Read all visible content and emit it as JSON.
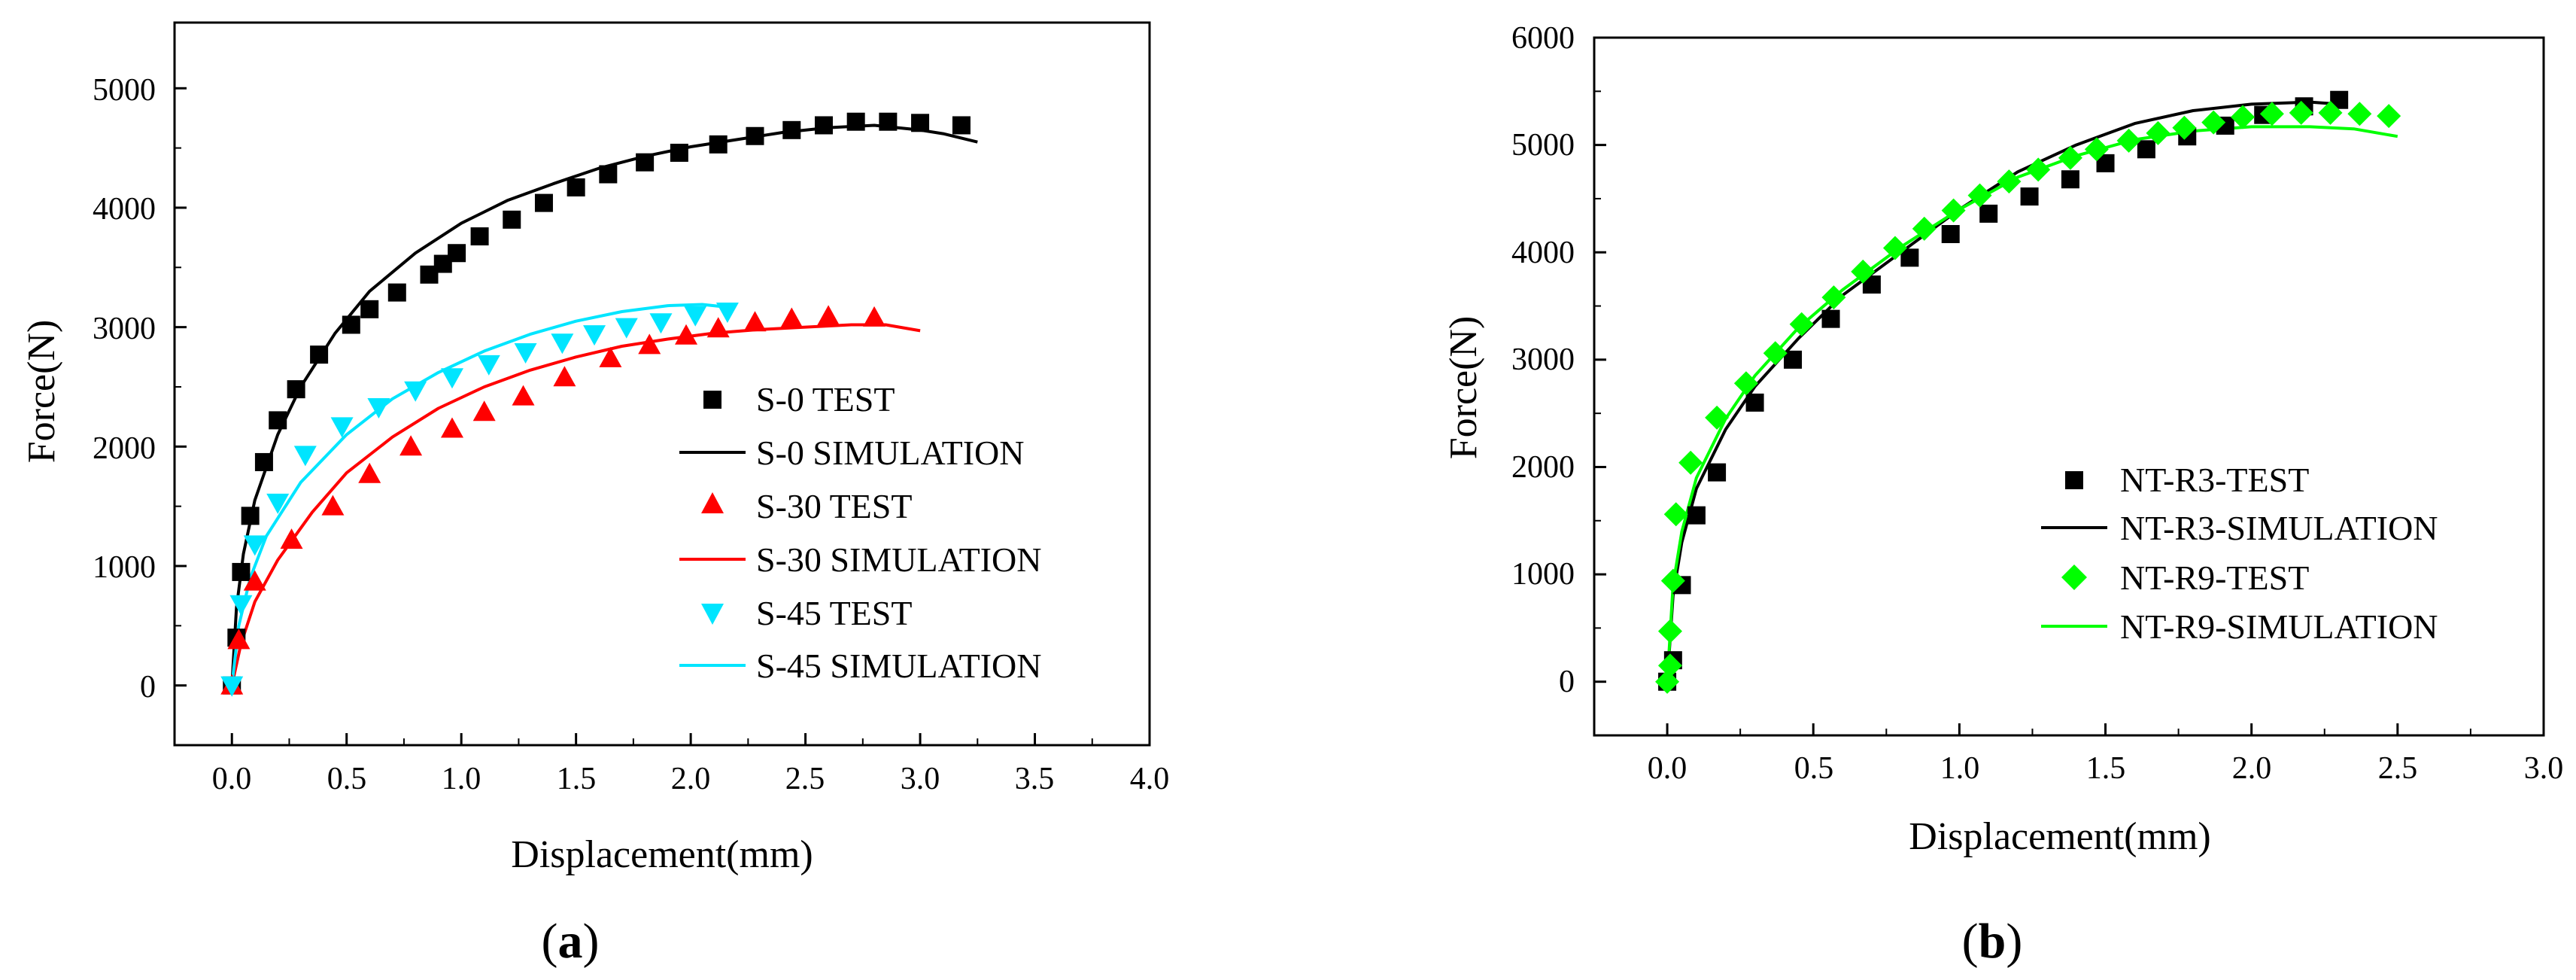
{
  "chart_data": [
    {
      "type": "scatter",
      "panel_label": "a",
      "xlabel": "Displacement(mm)",
      "ylabel": "Force(N)",
      "xlim": [
        -0.25,
        4.0
      ],
      "ylim": [
        -500,
        5550
      ],
      "xticks": [
        0.0,
        0.5,
        1.0,
        1.5,
        2.0,
        2.5,
        3.0,
        3.5,
        4.0
      ],
      "xtick_labels": [
        "0.0",
        "0.5",
        "1.0",
        "1.5",
        "2.0",
        "2.5",
        "3.0",
        "3.5",
        "4.0"
      ],
      "yticks": [
        0,
        1000,
        2000,
        3000,
        4000,
        5000
      ],
      "ytick_labels": [
        "0",
        "1000",
        "2000",
        "3000",
        "4000",
        "5000"
      ],
      "legend_position": "right",
      "series": [
        {
          "name": "S-0 TEST",
          "kind": "marker",
          "marker": "square",
          "color": "#000000",
          "points": [
            [
              0,
              0
            ],
            [
              0.02,
              400
            ],
            [
              0.04,
              950
            ],
            [
              0.08,
              1420
            ],
            [
              0.14,
              1870
            ],
            [
              0.2,
              2220
            ],
            [
              0.28,
              2480
            ],
            [
              0.38,
              2770
            ],
            [
              0.52,
              3020
            ],
            [
              0.6,
              3150
            ],
            [
              0.72,
              3290
            ],
            [
              0.86,
              3440
            ],
            [
              0.92,
              3530
            ],
            [
              0.98,
              3620
            ],
            [
              1.08,
              3760
            ],
            [
              1.22,
              3900
            ],
            [
              1.36,
              4040
            ],
            [
              1.5,
              4170
            ],
            [
              1.64,
              4280
            ],
            [
              1.8,
              4380
            ],
            [
              1.95,
              4460
            ],
            [
              2.12,
              4530
            ],
            [
              2.28,
              4600
            ],
            [
              2.44,
              4650
            ],
            [
              2.58,
              4690
            ],
            [
              2.72,
              4720
            ],
            [
              2.86,
              4720
            ],
            [
              3.0,
              4710
            ],
            [
              3.18,
              4690
            ]
          ]
        },
        {
          "name": "S-0 SIMULATION",
          "kind": "line",
          "color": "#000000",
          "points": [
            [
              0,
              0
            ],
            [
              0.02,
              650
            ],
            [
              0.05,
              1100
            ],
            [
              0.1,
              1550
            ],
            [
              0.2,
              2100
            ],
            [
              0.3,
              2500
            ],
            [
              0.45,
              2950
            ],
            [
              0.6,
              3300
            ],
            [
              0.8,
              3620
            ],
            [
              1.0,
              3870
            ],
            [
              1.2,
              4060
            ],
            [
              1.4,
              4200
            ],
            [
              1.6,
              4330
            ],
            [
              1.8,
              4430
            ],
            [
              2.0,
              4510
            ],
            [
              2.2,
              4570
            ],
            [
              2.4,
              4630
            ],
            [
              2.6,
              4670
            ],
            [
              2.8,
              4690
            ],
            [
              3.0,
              4650
            ],
            [
              3.1,
              4620
            ],
            [
              3.25,
              4550
            ]
          ]
        },
        {
          "name": "S-30 TEST",
          "kind": "marker",
          "marker": "triangle-up",
          "color": "#ff0000",
          "points": [
            [
              0,
              0
            ],
            [
              0.03,
              380
            ],
            [
              0.1,
              870
            ],
            [
              0.26,
              1220
            ],
            [
              0.44,
              1500
            ],
            [
              0.6,
              1770
            ],
            [
              0.78,
              2000
            ],
            [
              0.96,
              2150
            ],
            [
              1.1,
              2290
            ],
            [
              1.27,
              2420
            ],
            [
              1.45,
              2580
            ],
            [
              1.65,
              2740
            ],
            [
              1.82,
              2850
            ],
            [
              1.98,
              2930
            ],
            [
              2.12,
              2990
            ],
            [
              2.28,
              3040
            ],
            [
              2.44,
              3070
            ],
            [
              2.6,
              3090
            ],
            [
              2.8,
              3080
            ]
          ]
        },
        {
          "name": "S-30 SIMULATION",
          "kind": "line",
          "color": "#ff0000",
          "points": [
            [
              0,
              0
            ],
            [
              0.04,
              350
            ],
            [
              0.1,
              700
            ],
            [
              0.2,
              1050
            ],
            [
              0.35,
              1450
            ],
            [
              0.5,
              1780
            ],
            [
              0.7,
              2080
            ],
            [
              0.9,
              2320
            ],
            [
              1.1,
              2500
            ],
            [
              1.3,
              2640
            ],
            [
              1.5,
              2750
            ],
            [
              1.7,
              2840
            ],
            [
              1.9,
              2900
            ],
            [
              2.1,
              2950
            ],
            [
              2.3,
              2980
            ],
            [
              2.5,
              3000
            ],
            [
              2.7,
              3020
            ],
            [
              2.85,
              3020
            ],
            [
              3.0,
              2970
            ]
          ]
        },
        {
          "name": "S-45 TEST",
          "kind": "marker",
          "marker": "triangle-down",
          "color": "#00e5ff",
          "points": [
            [
              0,
              0
            ],
            [
              0.04,
              680
            ],
            [
              0.1,
              1180
            ],
            [
              0.2,
              1530
            ],
            [
              0.32,
              1930
            ],
            [
              0.48,
              2170
            ],
            [
              0.64,
              2330
            ],
            [
              0.8,
              2470
            ],
            [
              0.96,
              2580
            ],
            [
              1.12,
              2690
            ],
            [
              1.28,
              2790
            ],
            [
              1.44,
              2870
            ],
            [
              1.58,
              2940
            ],
            [
              1.72,
              3000
            ],
            [
              1.87,
              3040
            ],
            [
              2.02,
              3100
            ],
            [
              2.16,
              3130
            ]
          ]
        },
        {
          "name": "S-45 SIMULATION",
          "kind": "line",
          "color": "#00e5ff",
          "points": [
            [
              0,
              0
            ],
            [
              0.03,
              500
            ],
            [
              0.08,
              900
            ],
            [
              0.15,
              1250
            ],
            [
              0.3,
              1700
            ],
            [
              0.5,
              2100
            ],
            [
              0.7,
              2400
            ],
            [
              0.9,
              2620
            ],
            [
              1.1,
              2800
            ],
            [
              1.3,
              2940
            ],
            [
              1.5,
              3050
            ],
            [
              1.7,
              3130
            ],
            [
              1.9,
              3180
            ],
            [
              2.05,
              3190
            ],
            [
              2.15,
              3170
            ]
          ]
        }
      ]
    },
    {
      "type": "scatter",
      "panel_label": "b",
      "xlabel": "Displacement(mm)",
      "ylabel": "Force(N)",
      "xlim": [
        -0.25,
        3.0
      ],
      "ylim": [
        -500,
        6000
      ],
      "xticks": [
        0.0,
        0.5,
        1.0,
        1.5,
        2.0,
        2.5,
        3.0
      ],
      "xtick_labels": [
        "0.0",
        "0.5",
        "1.0",
        "1.5",
        "2.0",
        "2.5",
        "3.0"
      ],
      "yticks": [
        0,
        1000,
        2000,
        3000,
        4000,
        5000,
        6000
      ],
      "ytick_labels": [
        "0",
        "1000",
        "2000",
        "3000",
        "4000",
        "5000",
        "6000"
      ],
      "legend_position": "bottom-right",
      "series": [
        {
          "name": "NT-R3-TEST",
          "kind": "marker",
          "marker": "square",
          "color": "#000000",
          "points": [
            [
              0,
              0
            ],
            [
              0.02,
              200
            ],
            [
              0.05,
              900
            ],
            [
              0.1,
              1550
            ],
            [
              0.17,
              1950
            ],
            [
              0.3,
              2600
            ],
            [
              0.43,
              3000
            ],
            [
              0.56,
              3380
            ],
            [
              0.7,
              3700
            ],
            [
              0.83,
              3950
            ],
            [
              0.97,
              4170
            ],
            [
              1.1,
              4360
            ],
            [
              1.24,
              4520
            ],
            [
              1.38,
              4680
            ],
            [
              1.5,
              4830
            ],
            [
              1.64,
              4960
            ],
            [
              1.78,
              5080
            ],
            [
              1.91,
              5180
            ],
            [
              2.04,
              5280
            ],
            [
              2.18,
              5360
            ],
            [
              2.3,
              5420
            ]
          ]
        },
        {
          "name": "NT-R3-SIMULATION",
          "kind": "line",
          "color": "#000000",
          "points": [
            [
              0,
              0
            ],
            [
              0.02,
              800
            ],
            [
              0.05,
              1300
            ],
            [
              0.1,
              1800
            ],
            [
              0.2,
              2350
            ],
            [
              0.3,
              2750
            ],
            [
              0.45,
              3200
            ],
            [
              0.6,
              3600
            ],
            [
              0.8,
              4000
            ],
            [
              1.0,
              4400
            ],
            [
              1.2,
              4750
            ],
            [
              1.4,
              5000
            ],
            [
              1.6,
              5200
            ],
            [
              1.8,
              5320
            ],
            [
              2.0,
              5380
            ],
            [
              2.2,
              5400
            ],
            [
              2.3,
              5380
            ]
          ]
        },
        {
          "name": "NT-R9-TEST",
          "kind": "marker",
          "marker": "diamond",
          "color": "#00ff00",
          "points": [
            [
              0,
              0
            ],
            [
              0.01,
              150
            ],
            [
              0.01,
              470
            ],
            [
              0.02,
              940
            ],
            [
              0.03,
              1560
            ],
            [
              0.08,
              2040
            ],
            [
              0.17,
              2460
            ],
            [
              0.27,
              2780
            ],
            [
              0.37,
              3060
            ],
            [
              0.46,
              3330
            ],
            [
              0.57,
              3580
            ],
            [
              0.67,
              3820
            ],
            [
              0.78,
              4040
            ],
            [
              0.88,
              4220
            ],
            [
              0.98,
              4390
            ],
            [
              1.07,
              4530
            ],
            [
              1.17,
              4660
            ],
            [
              1.27,
              4770
            ],
            [
              1.38,
              4880
            ],
            [
              1.47,
              4960
            ],
            [
              1.58,
              5040
            ],
            [
              1.68,
              5110
            ],
            [
              1.77,
              5160
            ],
            [
              1.87,
              5210
            ],
            [
              1.97,
              5260
            ],
            [
              2.07,
              5290
            ],
            [
              2.17,
              5300
            ],
            [
              2.27,
              5300
            ],
            [
              2.37,
              5290
            ],
            [
              2.47,
              5270
            ]
          ]
        },
        {
          "name": "NT-R9-SIMULATION",
          "kind": "line",
          "color": "#00ff00",
          "points": [
            [
              0,
              0
            ],
            [
              0.02,
              900
            ],
            [
              0.05,
              1400
            ],
            [
              0.1,
              1900
            ],
            [
              0.2,
              2450
            ],
            [
              0.3,
              2850
            ],
            [
              0.45,
              3300
            ],
            [
              0.6,
              3650
            ],
            [
              0.8,
              4050
            ],
            [
              1.0,
              4400
            ],
            [
              1.2,
              4700
            ],
            [
              1.4,
              4900
            ],
            [
              1.6,
              5050
            ],
            [
              1.8,
              5130
            ],
            [
              2.0,
              5170
            ],
            [
              2.2,
              5170
            ],
            [
              2.35,
              5150
            ],
            [
              2.5,
              5080
            ]
          ]
        }
      ]
    }
  ]
}
